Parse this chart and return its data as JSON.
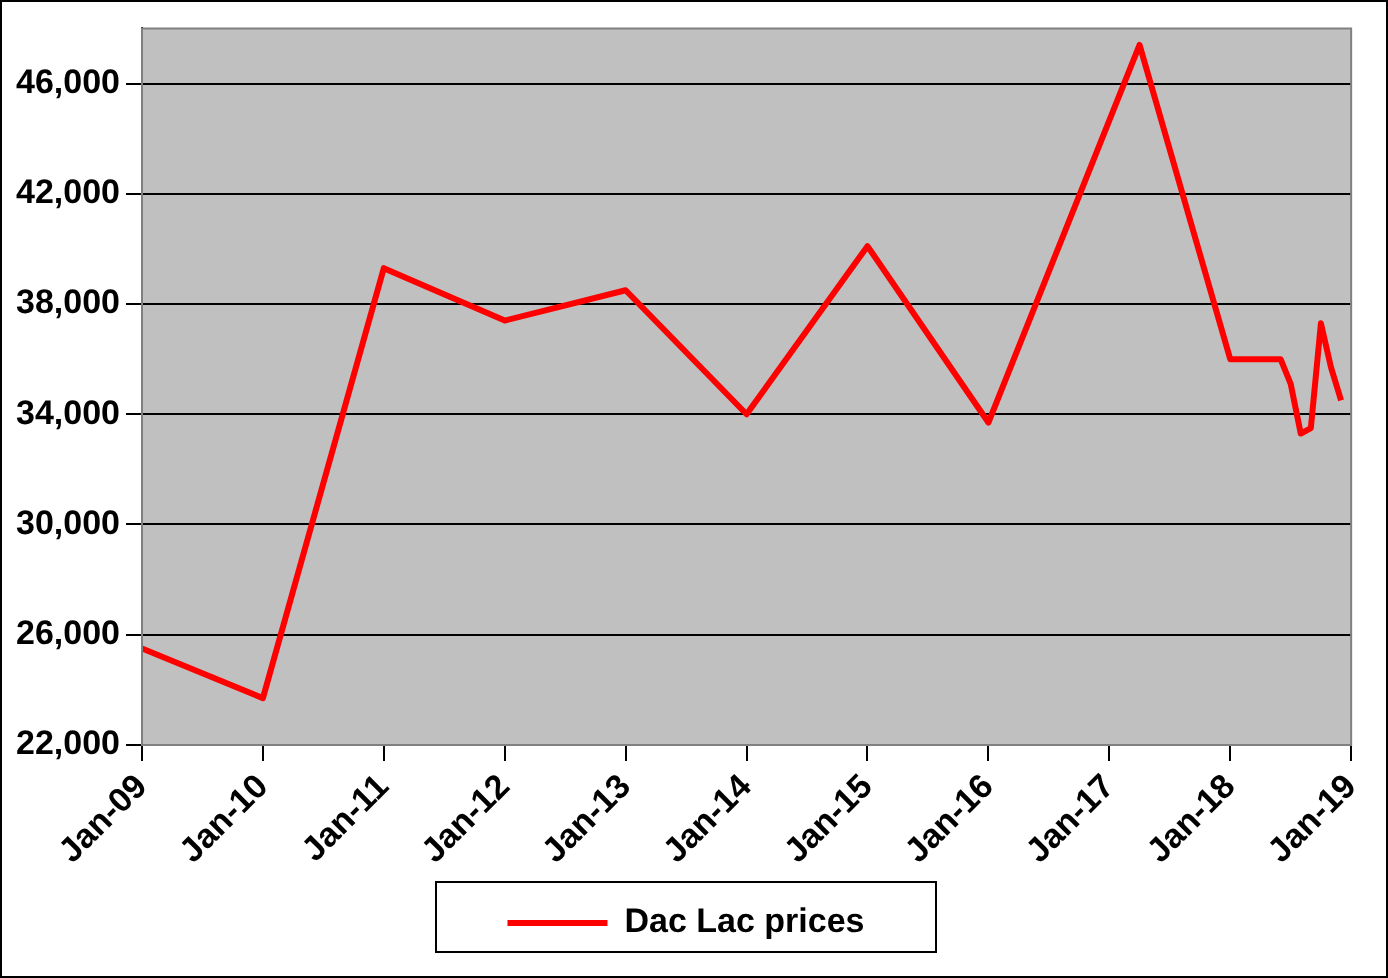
{
  "chart_data": {
    "type": "line",
    "x": [
      "2009-01",
      "2010-01",
      "2011-01",
      "2012-01",
      "2013-01",
      "2014-01",
      "2015-01",
      "2016-01",
      "2017-04",
      "2018-01",
      "2018-06",
      "2018-07",
      "2018-08",
      "2018-09",
      "2018-10",
      "2018-11",
      "2018-12"
    ],
    "series": [
      {
        "name": "Dac Lac prices",
        "color": "#ff0000",
        "values": [
          25500,
          23700,
          39300,
          37400,
          38500,
          34000,
          40100,
          33700,
          47400,
          36000,
          36000,
          35100,
          33300,
          33500,
          37300,
          35700,
          34500
        ]
      }
    ],
    "xlim": [
      "2009-01",
      "2019-01"
    ],
    "xticks": [
      {
        "value": "2009-01",
        "label": "Jan-09"
      },
      {
        "value": "2010-01",
        "label": "Jan-10"
      },
      {
        "value": "2011-01",
        "label": "Jan-11"
      },
      {
        "value": "2012-01",
        "label": "Jan-12"
      },
      {
        "value": "2013-01",
        "label": "Jan-13"
      },
      {
        "value": "2014-01",
        "label": "Jan-14"
      },
      {
        "value": "2015-01",
        "label": "Jan-15"
      },
      {
        "value": "2016-01",
        "label": "Jan-16"
      },
      {
        "value": "2017-01",
        "label": "Jan-17"
      },
      {
        "value": "2018-01",
        "label": "Jan-18"
      },
      {
        "value": "2019-01",
        "label": "Jan-19"
      }
    ],
    "ylim": [
      22000,
      48000
    ],
    "yticks": [
      {
        "value": 22000,
        "label": "22,000"
      },
      {
        "value": 26000,
        "label": "26,000"
      },
      {
        "value": 30000,
        "label": "30,000"
      },
      {
        "value": 34000,
        "label": "34,000"
      },
      {
        "value": 38000,
        "label": "38,000"
      },
      {
        "value": 42000,
        "label": "42,000"
      },
      {
        "value": 46000,
        "label": "46,000"
      }
    ],
    "grid": "y",
    "legend": "bottom",
    "marker": "none",
    "line_style": "solid"
  }
}
